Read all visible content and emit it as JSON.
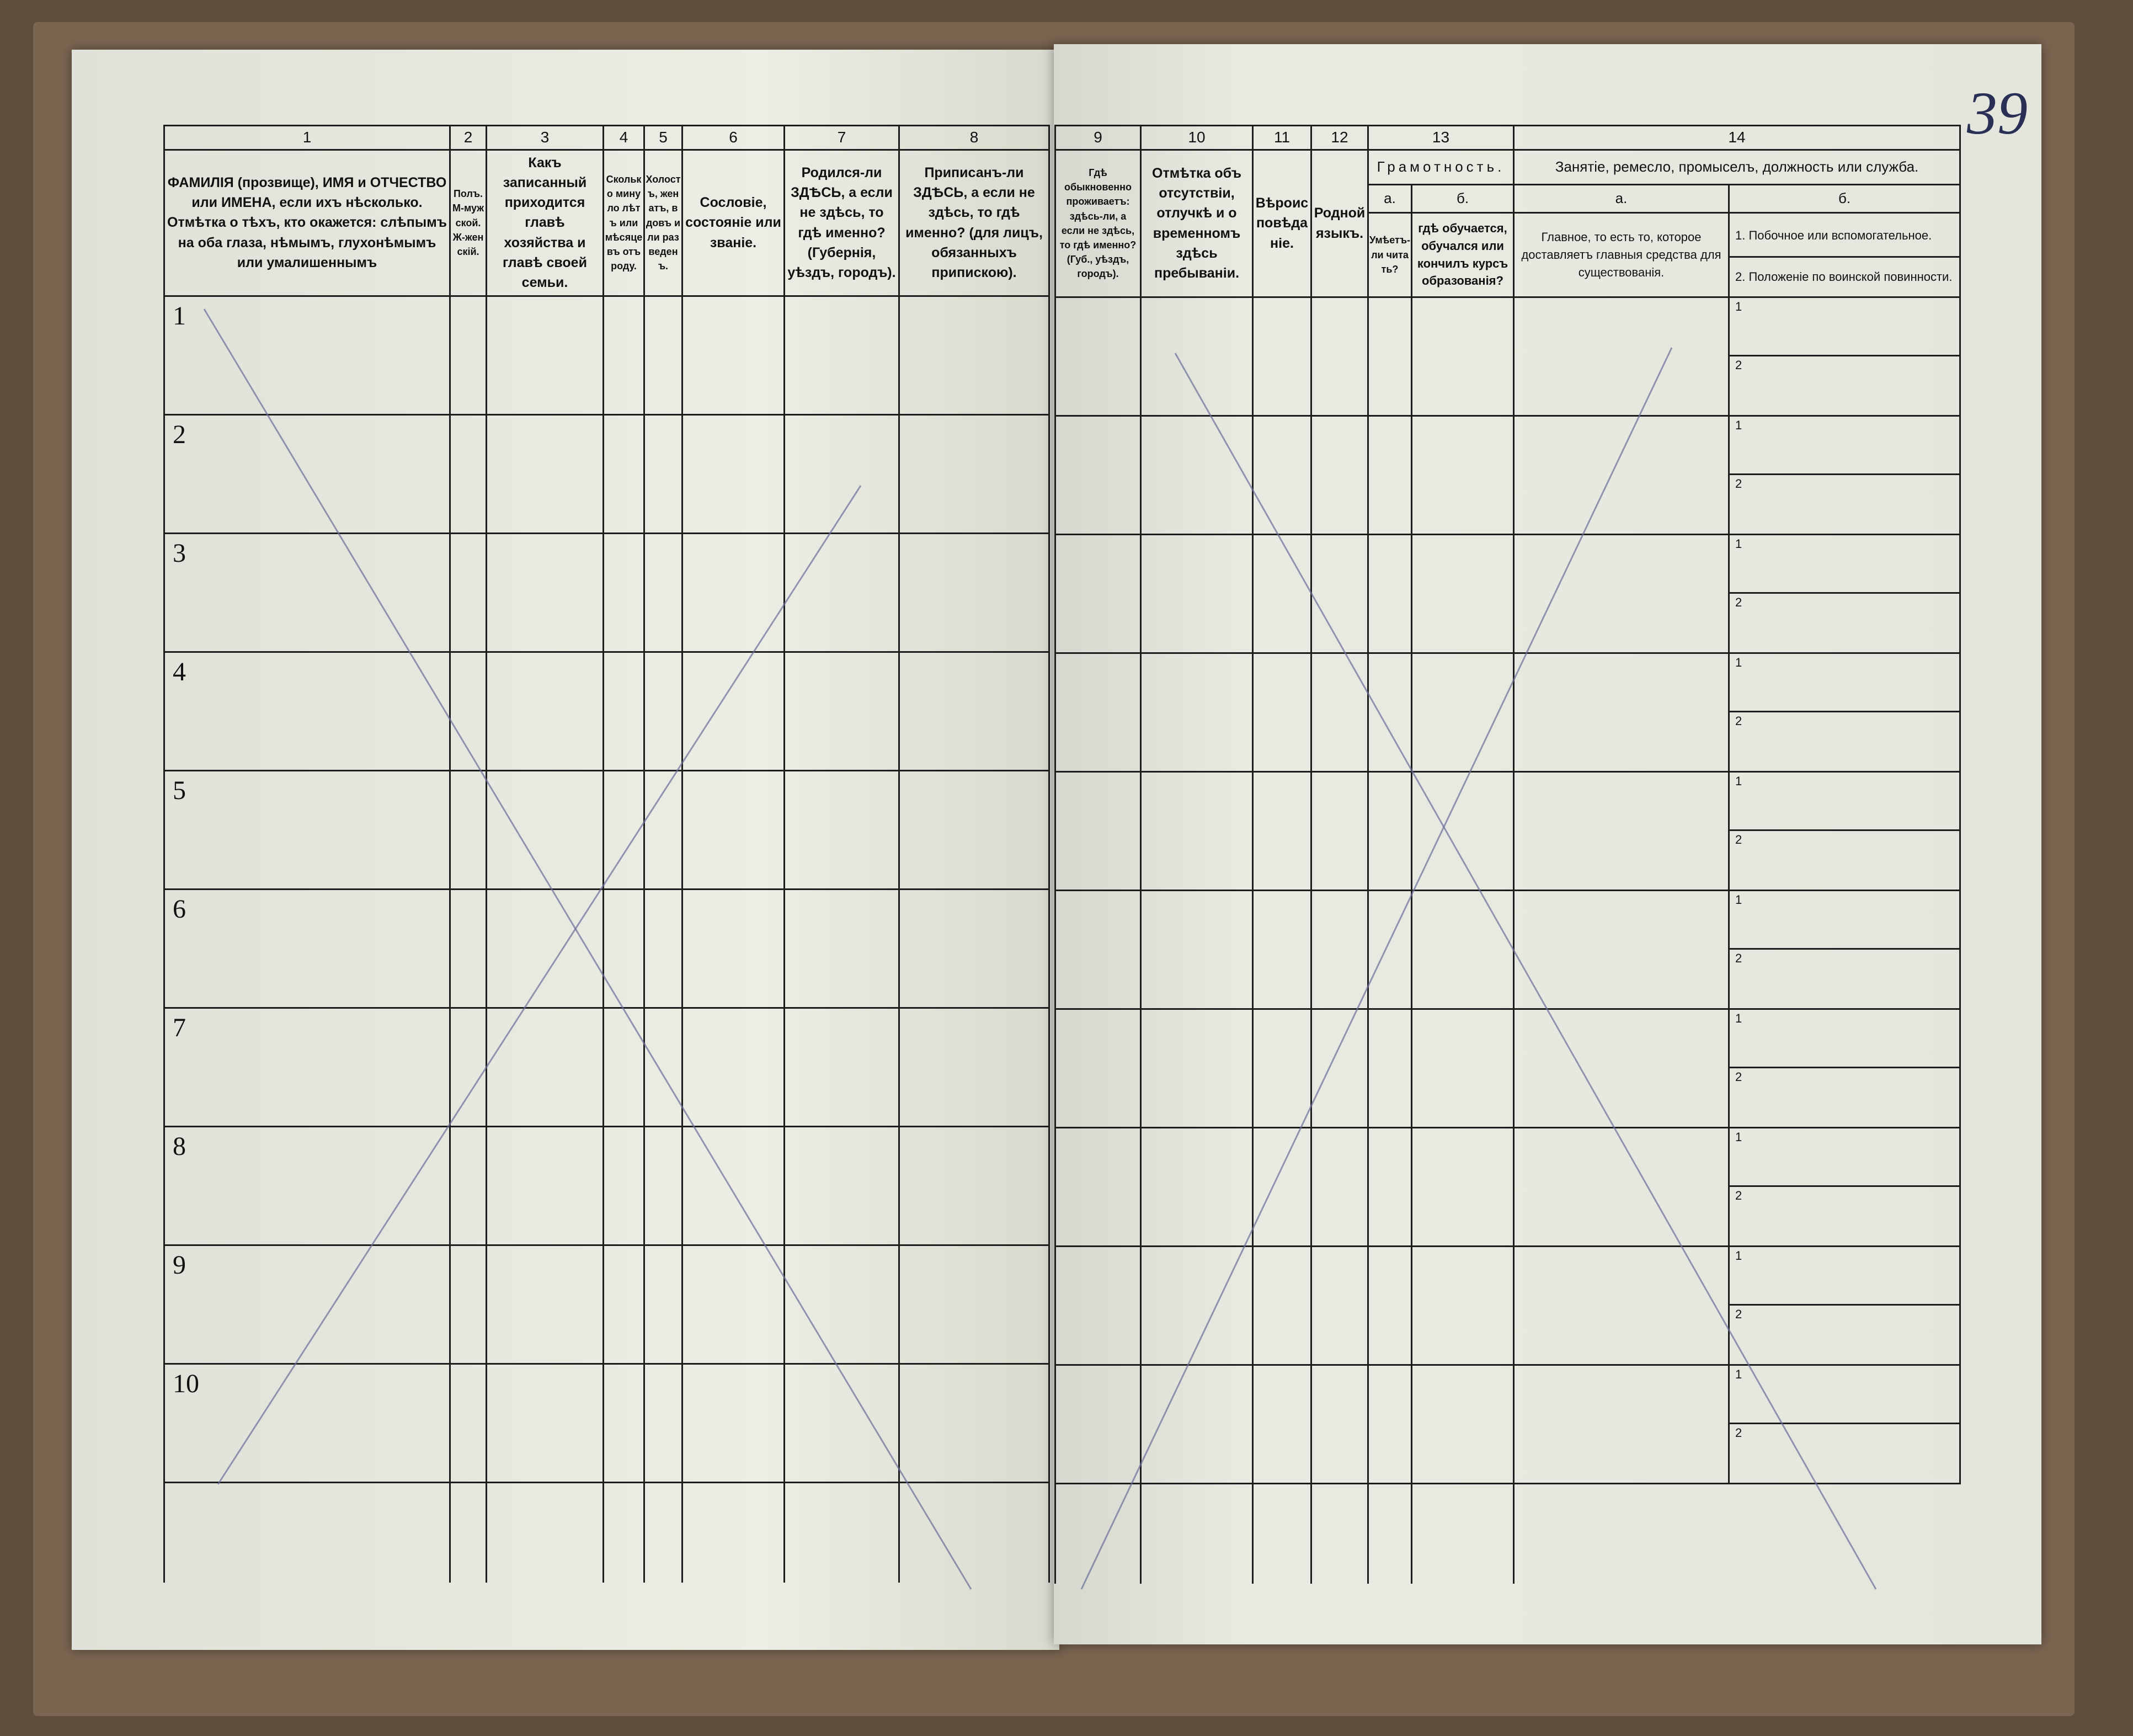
{
  "document": {
    "handwritten_page_number": "39",
    "left_page": {
      "columns": [
        {
          "num": "1",
          "header": "ФАМИЛІЯ (прозвище), ИМЯ и ОТЧЕСТВО или ИМЕНА, если ихъ нѣсколько. Отмѣтка о тѣхъ, кто окажется: слѣпымъ на оба глаза, нѣмымъ, глухонѣмымъ или умалишеннымъ"
        },
        {
          "num": "2",
          "header": "Полъ. М-мужской. Ж-женскій."
        },
        {
          "num": "3",
          "header": "Какъ записанный приходится главѣ хозяйства и главѣ своей семьи."
        },
        {
          "num": "4",
          "header": "Сколько минуло лѣтъ или мѣсяцевъ отъ роду."
        },
        {
          "num": "5",
          "header": "Холостъ, женатъ, вдовъ или разведенъ."
        },
        {
          "num": "6",
          "header": "Сословіе, состояніе или званіе."
        },
        {
          "num": "7",
          "header": "Родился-ли ЗДѢСЬ, а если не здѣсь, то гдѣ именно? (Губернія, уѣздъ, городъ)."
        },
        {
          "num": "8",
          "header": "Приписанъ-ли ЗДѢСЬ, а если не здѣсь, то гдѣ именно? (для лицъ, обязанныхъ припискою)."
        }
      ]
    },
    "right_page": {
      "columns": [
        {
          "num": "9",
          "header": "Гдѣ обыкновенно проживаетъ: здѣсь-ли, а если не здѣсь, то гдѣ именно? (Губ., уѣздъ, городъ)."
        },
        {
          "num": "10",
          "header": "Отмѣтка объ отсутствіи, отлучкѣ и о временномъ здѣсь пребываніи."
        },
        {
          "num": "11",
          "header": "Вѣроисповѣданіе."
        },
        {
          "num": "12",
          "header": "Родной языкъ."
        }
      ],
      "literacy": {
        "num": "13",
        "title": "Грамотность.",
        "a_label": "а.",
        "a_header": "Умѣетъ-ли читать?",
        "b_label": "б.",
        "b_header": "гдѣ обучается, обучался или кончилъ курсъ образованія?"
      },
      "occupation": {
        "num": "14",
        "title": "Занятіе, ремесло, промыселъ, должность или служба.",
        "a_label": "а.",
        "a_header": "Главное, то есть то, которое доставляетъ главныя средства для существованія.",
        "b_label": "б.",
        "b_header_1": "1. Побочное или вспомогательное.",
        "b_header_2": "2. Положеніе по воинской повинности."
      }
    },
    "rows": [
      "1",
      "2",
      "3",
      "4",
      "5",
      "6",
      "7",
      "8",
      "9",
      "10"
    ],
    "sub_marks": [
      "1",
      "2"
    ]
  }
}
